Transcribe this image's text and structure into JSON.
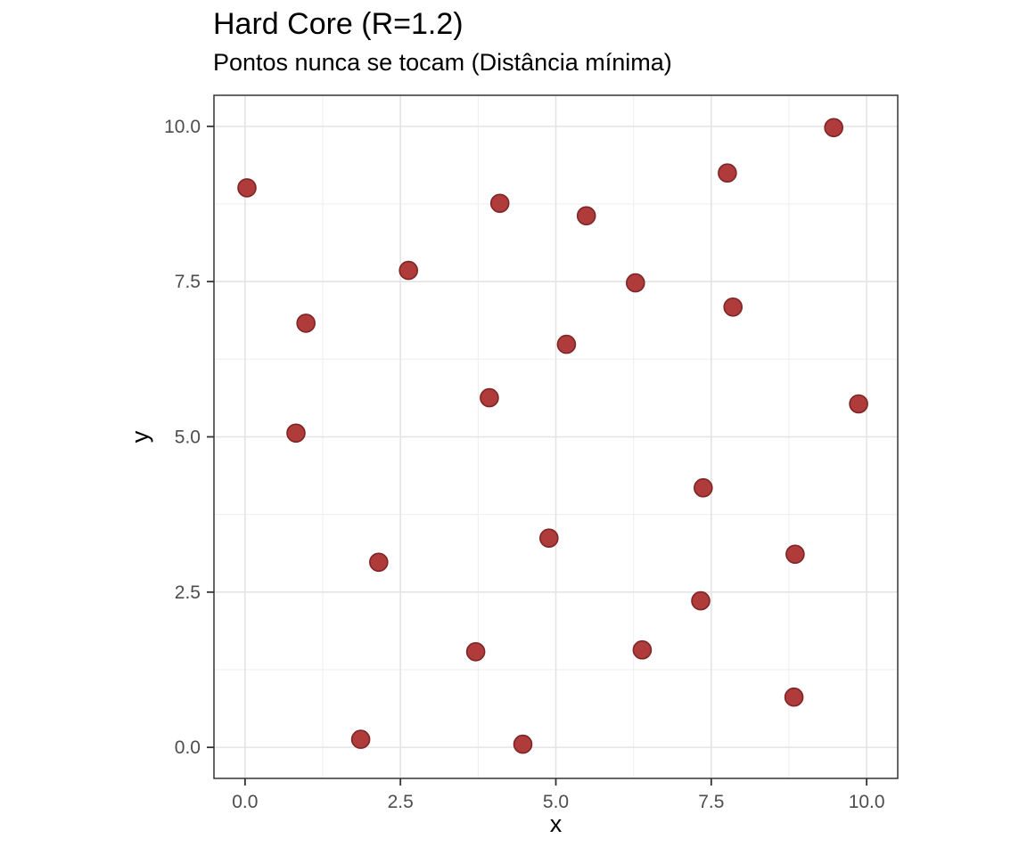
{
  "figure": {
    "background": "#FFFFFF"
  },
  "chart_data": {
    "type": "scatter",
    "title": "Hard Core (R=1.2)",
    "subtitle": "Pontos nunca se tocam (Distância mínima)",
    "xlabel": "x",
    "ylabel": "y",
    "xlim": [
      -0.5,
      10.5
    ],
    "ylim": [
      -0.5,
      10.5
    ],
    "x_ticks": [
      0.0,
      2.5,
      5.0,
      7.5,
      10.0
    ],
    "y_ticks": [
      0.0,
      2.5,
      5.0,
      7.5,
      10.0
    ],
    "x_tick_labels": [
      "0.0",
      "2.5",
      "5.0",
      "7.5",
      "10.0"
    ],
    "y_tick_labels": [
      "0.0",
      "2.5",
      "5.0",
      "7.5",
      "10.0"
    ],
    "x_minor_ticks": [
      1.25,
      3.75,
      6.25,
      8.75
    ],
    "y_minor_ticks": [
      1.25,
      3.75,
      6.25,
      8.75
    ],
    "grid": true,
    "legend": false,
    "series": [
      {
        "name": "points",
        "x": [
          0.03,
          0.82,
          0.98,
          1.86,
          2.15,
          2.63,
          3.71,
          3.93,
          4.1,
          4.47,
          4.89,
          5.17,
          5.49,
          6.28,
          6.39,
          7.33,
          7.37,
          7.76,
          7.85,
          8.83,
          8.85,
          9.47,
          9.87
        ],
        "y": [
          9.01,
          5.06,
          6.83,
          0.13,
          2.98,
          7.68,
          1.54,
          5.63,
          8.76,
          0.05,
          3.37,
          6.49,
          8.56,
          7.48,
          1.57,
          2.36,
          4.18,
          9.25,
          7.09,
          0.81,
          3.11,
          9.98,
          5.53
        ]
      }
    ],
    "style": {
      "point_fill": "#B03B3B",
      "point_stroke": "#7E2525",
      "point_radius_px": 10,
      "panel_border": "#333333",
      "grid_major": "#E4E4E4",
      "grid_minor": "#EFEFEF",
      "tick_mark_color": "#333333",
      "tick_label_color": "#4D4D4D",
      "axis_title_color": "#000000",
      "panel_background": "#FFFFFF"
    }
  }
}
